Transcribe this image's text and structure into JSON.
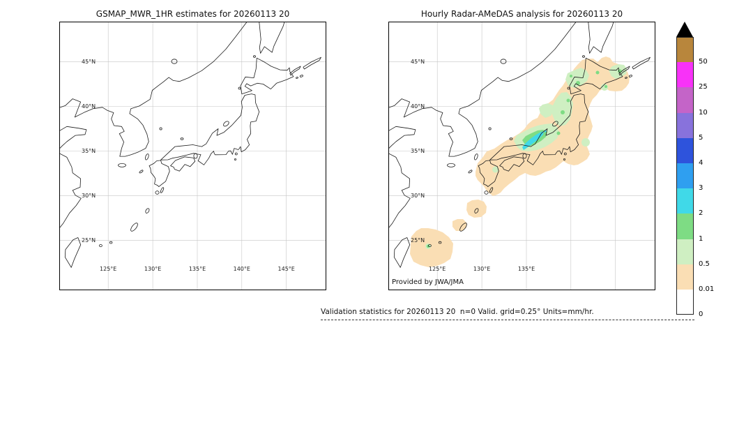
{
  "figure": {
    "background": "#ffffff"
  },
  "left_panel": {
    "title": "GSMAP_MWR_1HR estimates for 20260113 20",
    "lat_labels": [
      "45°N",
      "40°N",
      "35°N",
      "30°N",
      "25°N"
    ],
    "lon_labels": [
      "125°E",
      "130°E",
      "135°E",
      "140°E",
      "145°E"
    ]
  },
  "right_panel": {
    "title": "Hourly Radar-AMeDAS analysis for 20260113 20",
    "lat_labels": [
      "45°N",
      "40°N",
      "35°N",
      "30°N",
      "25°N"
    ],
    "lon_labels": [
      "125°E",
      "130°E",
      "135°E"
    ],
    "credit": "Provided by JWA/JMA"
  },
  "colorbar": {
    "boundary_labels": [
      "50",
      "25",
      "10",
      "5",
      "4",
      "3",
      "2",
      "1",
      "0.5",
      "0.01",
      "0"
    ],
    "levels_mm_per_hr": [
      50,
      25,
      10,
      5,
      4,
      3,
      2,
      1,
      0.5,
      0.01,
      0
    ],
    "overflow_color": "#000000",
    "colors_top_to_bottom": [
      "#b8863c",
      "#f832f8",
      "#c464c8",
      "#8872dc",
      "#2e53dc",
      "#2f9ff0",
      "#40d9e8",
      "#7edc84",
      "#cfefc2",
      "#fadeb4",
      "#ffffff"
    ]
  },
  "caption": "Validation statistics for 20260113 20  n=0 Valid. grid=0.25° Units=mm/hr."
}
